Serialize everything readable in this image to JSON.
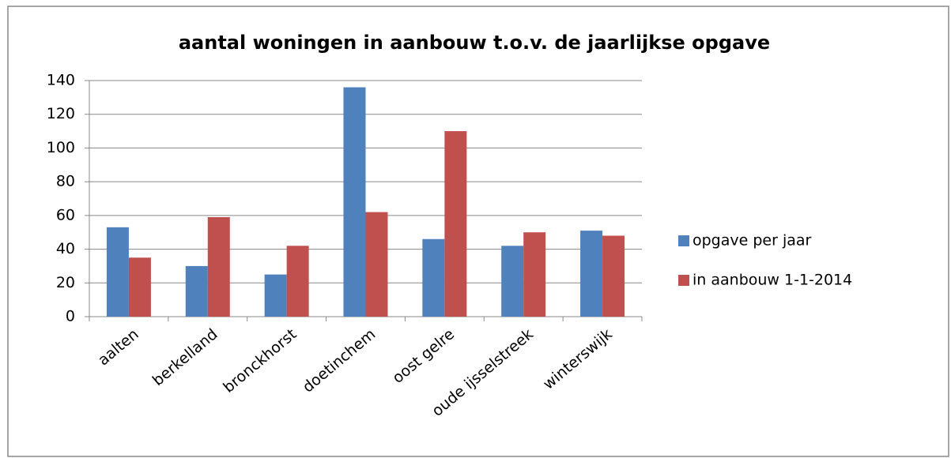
{
  "chart_data": {
    "type": "bar",
    "title": "aantal woningen in aanbouw t.o.v. de jaarlijkse opgave",
    "categories": [
      "aalten",
      "berkelland",
      "bronckhorst",
      "doetinchem",
      "oost gelre",
      "oude ijsselstreek",
      "winterswijk"
    ],
    "series": [
      {
        "name": "opgave per jaar",
        "color": "#4f81bd",
        "values": [
          53,
          30,
          25,
          136,
          46,
          42,
          51
        ]
      },
      {
        "name": "in aanbouw 1-1-2014",
        "color": "#c0504d",
        "values": [
          35,
          59,
          42,
          62,
          110,
          50,
          48
        ]
      }
    ],
    "ylim": [
      0,
      140
    ],
    "yticks": [
      0,
      20,
      40,
      60,
      80,
      100,
      120,
      140
    ],
    "grid": true,
    "legend": "right"
  }
}
